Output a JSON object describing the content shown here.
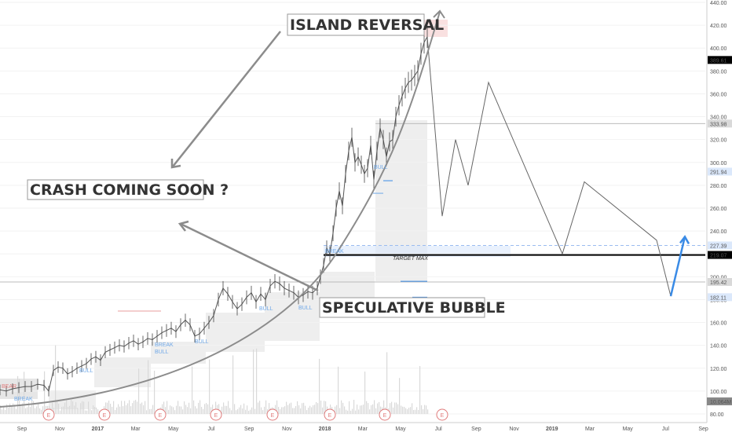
{
  "chart_data": {
    "type": "line",
    "title": "",
    "xlabel": "",
    "ylabel": "",
    "ylim": [
      80,
      440
    ],
    "y_ticks": [
      "80.00",
      "100.00",
      "120.00",
      "140.00",
      "160.00",
      "180.00",
      "200.00",
      "220.00",
      "240.00",
      "260.00",
      "280.00",
      "300.00",
      "320.00",
      "340.00",
      "360.00",
      "380.00",
      "400.00",
      "420.00",
      "440.00"
    ],
    "x_ticks": [
      "Sep",
      "Nov",
      "2017",
      "Mar",
      "May",
      "Jul",
      "Sep",
      "Nov",
      "2018",
      "Mar",
      "May",
      "Jul",
      "Sep",
      "Nov",
      "2019",
      "Mar",
      "May",
      "Jul",
      "Sep"
    ],
    "price_labels": [
      {
        "value": 389.61,
        "text": "389.61",
        "bg": "#000000",
        "fg": "#ffffff"
      },
      {
        "value": 333.98,
        "text": "333.98",
        "bg": "#d9d9d9",
        "fg": "#333333"
      },
      {
        "value": 291.94,
        "text": "291.94",
        "bg": "#dbe8fb",
        "fg": "#2f6fd0"
      },
      {
        "value": 227.39,
        "text": "227.39",
        "bg": "#dbe8fb",
        "fg": "#2f6fd0"
      },
      {
        "value": 219.07,
        "text": "219.07",
        "bg": "#000000",
        "fg": "#ffffff"
      },
      {
        "value": 195.42,
        "text": "195.42",
        "bg": "#d9d9d9",
        "fg": "#333333"
      },
      {
        "value": 182.11,
        "text": "182.11",
        "bg": "#dbe8fb",
        "fg": "#2f6fd0"
      }
    ],
    "volume_label": "10.064M",
    "series": [
      {
        "values_x": [
          0,
          8,
          16,
          24,
          32,
          40,
          48,
          56,
          62,
          68,
          74,
          80,
          86,
          92,
          98,
          104,
          110,
          116,
          122,
          128,
          134,
          140,
          146,
          152,
          158,
          164,
          170,
          176,
          182,
          188,
          194,
          200,
          206,
          212,
          218,
          224,
          230,
          236,
          242,
          248,
          254,
          260,
          266,
          272,
          278,
          284,
          290,
          296,
          302,
          308,
          314,
          320,
          326,
          332,
          338,
          344,
          350,
          356,
          362,
          368,
          374,
          380,
          386,
          392,
          398,
          404,
          408,
          412,
          416,
          420,
          424,
          428,
          432,
          436,
          440,
          444,
          448,
          452,
          456,
          460,
          464,
          468,
          472,
          476,
          480,
          484,
          488,
          492,
          496,
          500,
          504,
          508,
          512,
          516,
          520,
          524,
          528,
          532,
          536,
          540,
          544
        ],
        "values": [
          101,
          100,
          102,
          103,
          104,
          104,
          106,
          105,
          100,
          118,
          121,
          120,
          115,
          117,
          120,
          122,
          124,
          128,
          130,
          127,
          134,
          136,
          138,
          140,
          139,
          142,
          144,
          141,
          143,
          146,
          145,
          148,
          151,
          153,
          155,
          152,
          158,
          162,
          158,
          148,
          150,
          155,
          160,
          166,
          180,
          190,
          185,
          178,
          172,
          176,
          182,
          186,
          178,
          185,
          180,
          192,
          196,
          194,
          190,
          188,
          186,
          182,
          184,
          187,
          186,
          190,
          200,
          210,
          225,
          220,
          238,
          260,
          275,
          262,
          290,
          310,
          322,
          300,
          305,
          298,
          290,
          295,
          315,
          285,
          310,
          330,
          320,
          305,
          318,
          320,
          340,
          350,
          358,
          365,
          370,
          372,
          376,
          380,
          395,
          405,
          410
        ]
      }
    ],
    "projection": {
      "values_x": [
        544,
        563,
        580,
        596,
        622,
        716,
        744,
        836,
        854
      ],
      "values": [
        410,
        253,
        320,
        280,
        370,
        220,
        283,
        232,
        183
      ]
    },
    "breakout_target": {
      "values_x": [
        854,
        872
      ],
      "values": [
        183,
        235
      ]
    }
  },
  "annotations": {
    "island_reversal": "ISLAND REVERSAL",
    "crash_coming_soon": "CRASH COMING SOON ?",
    "speculative_bubble": "SPECULATIVE BUBBLE",
    "target_max": "TARGET MAX"
  },
  "markers": {
    "bull": "BULL",
    "bear": "BEAR",
    "break": "BREAK",
    "earnings": "E"
  },
  "colors": {
    "accent_blue": "#3a8be6",
    "bull_blue": "#6fa8e8",
    "bear_red": "#e07b7b",
    "arrow_gray": "#8c8c8c"
  }
}
